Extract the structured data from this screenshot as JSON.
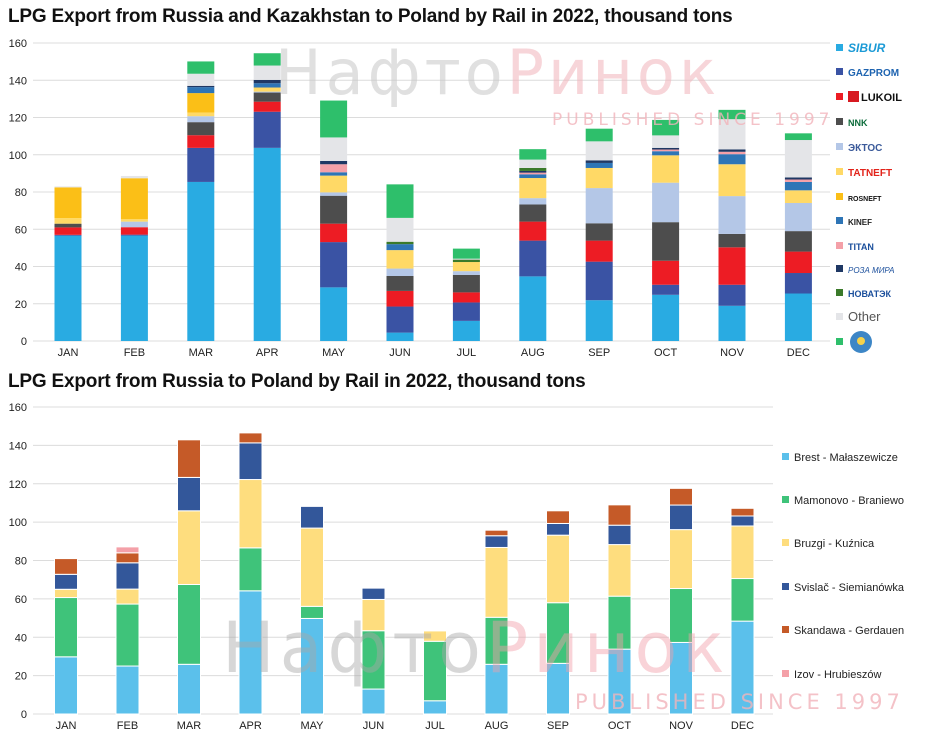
{
  "chart_data": [
    {
      "type": "bar",
      "stacked": true,
      "title": "LPG Export  from Russia and Kazakhstan to Poland by Rail in 2022, thousand tons",
      "categories": [
        "JAN",
        "FEB",
        "MAR",
        "APR",
        "MAY",
        "JUN",
        "JUL",
        "AUG",
        "SEP",
        "OCT",
        "NOV",
        "DEC"
      ],
      "ylim": [
        0,
        160
      ],
      "yticks": [
        0,
        20,
        40,
        60,
        80,
        100,
        120,
        140,
        160
      ],
      "grid": true,
      "legend_placement": "right",
      "series": [
        {
          "name": "SIBUR",
          "color": "#29abe2",
          "values": [
            56.5,
            56.6,
            85.4,
            103.7,
            28.8,
            4.5,
            10.8,
            34.7,
            21.9,
            24.8,
            18.9,
            25.5
          ]
        },
        {
          "name": "GAZPROM",
          "color": "#3a53a4",
          "values": [
            0.5,
            0.5,
            18.3,
            19.4,
            24.3,
            14,
            9.9,
            19.2,
            20.7,
            5.4,
            11.3,
            11
          ]
        },
        {
          "name": "LUKOIL",
          "color": "#ed1c24",
          "values": [
            4,
            4,
            6.8,
            5.4,
            9.9,
            8.4,
            5.4,
            10.2,
            11.3,
            12.9,
            20.1,
            11.5
          ]
        },
        {
          "name": "NNK",
          "color": "#4d4d4d",
          "values": [
            2,
            0,
            7,
            4.9,
            15,
            8,
            9.4,
            9.2,
            9.3,
            20.7,
            7.2,
            11
          ]
        },
        {
          "name": "EKTOS",
          "color": "#b4c7e7",
          "values": [
            0,
            3,
            3.2,
            0.5,
            1.8,
            4,
            2,
            3.4,
            18.9,
            21.2,
            20.3,
            15.1
          ]
        },
        {
          "name": "TATNEFT",
          "color": "#ffd966",
          "values": [
            3,
            1.3,
            2,
            2.2,
            9,
            9.9,
            4.9,
            10.8,
            10.8,
            14.7,
            17.1,
            6.8
          ]
        },
        {
          "name": "ROSNEFT",
          "color": "#fbbf17",
          "values": [
            16.5,
            22,
            10.4,
            0,
            0,
            0,
            0,
            0,
            0,
            0,
            0,
            0
          ]
        },
        {
          "name": "KINEF",
          "color": "#2e75b6",
          "values": [
            0,
            0,
            3.2,
            2.3,
            1.8,
            3.2,
            0,
            2,
            2.7,
            2.2,
            5.4,
            4.5
          ]
        },
        {
          "name": "TITAN",
          "color": "#f4a0a8",
          "values": [
            0,
            0,
            0,
            0,
            4.3,
            0,
            0,
            0.9,
            0,
            0.9,
            1.3,
            1.3
          ]
        },
        {
          "name": "ROZA MIRA",
          "color": "#1f3864",
          "values": [
            0,
            0,
            0.7,
            1.8,
            1.8,
            0,
            0,
            0.9,
            1.4,
            0.9,
            1.3,
            1.1
          ]
        },
        {
          "name": "NOVATEK",
          "color": "#3b7a2a",
          "values": [
            0,
            0,
            0,
            0,
            0,
            1.3,
            1.3,
            1.6,
            0,
            0,
            0,
            0
          ]
        },
        {
          "name": "Other",
          "color": "#e4e5e8",
          "values": [
            0.5,
            1.2,
            6.5,
            7.7,
            12.6,
            12.8,
            0.5,
            4.5,
            10.2,
            6.7,
            16.2,
            20.1
          ]
        },
        {
          "name": "Kazakhstan",
          "color": "#2ebf6b",
          "values": [
            0,
            0,
            6.6,
            6.6,
            19.8,
            18,
            5.4,
            5.6,
            6.8,
            8.3,
            5,
            3.6
          ]
        }
      ]
    },
    {
      "type": "bar",
      "stacked": true,
      "title": "LPG Export  from Russia to Poland by Rail in 2022, thousand tons",
      "categories": [
        "JAN",
        "FEB",
        "MAR",
        "APR",
        "MAY",
        "JUN",
        "JUL",
        "AUG",
        "SEP",
        "OCT",
        "NOV",
        "DEC"
      ],
      "ylim": [
        0,
        160
      ],
      "yticks": [
        0,
        20,
        40,
        60,
        80,
        100,
        120,
        140,
        160
      ],
      "grid": true,
      "legend_placement": "right",
      "series": [
        {
          "name": "Brest - Małaszewicze",
          "color": "#5bc0eb",
          "values": [
            29.8,
            25,
            25.9,
            64.2,
            49.8,
            13,
            6.9,
            25.9,
            26.4,
            33.8,
            37.3,
            48.4
          ]
        },
        {
          "name": "Mamonovo - Braniewo",
          "color": "#3fc37a",
          "values": [
            30.9,
            32.3,
            41.6,
            22.4,
            6.3,
            30.4,
            31,
            24.5,
            31.6,
            27.6,
            28.1,
            22.2
          ]
        },
        {
          "name": "Bruzgi - Kuźnica",
          "color": "#fedd7e",
          "values": [
            4.3,
            7.8,
            38.4,
            35.6,
            40.8,
            16.3,
            5.4,
            36.4,
            35.2,
            26.9,
            30.7,
            27.4
          ]
        },
        {
          "name": "Svislač - Siemianówka",
          "color": "#33579a",
          "values": [
            7.8,
            13.7,
            17.4,
            19.1,
            11.3,
            5.9,
            0,
            6.1,
            6.1,
            10.1,
            12.8,
            5.2
          ]
        },
        {
          "name": "Skandawa - Gerdauen",
          "color": "#c55a28",
          "values": [
            8.2,
            5.2,
            19.6,
            5.2,
            0,
            0,
            0,
            2.9,
            6.6,
            10.6,
            8.7,
            4
          ]
        },
        {
          "name": "Izov - Hrubieszów",
          "color": "#f4a0a8",
          "values": [
            0,
            3.1,
            0,
            0,
            0,
            0,
            0,
            0,
            0,
            0,
            0,
            0
          ]
        }
      ]
    }
  ],
  "watermark": {
    "brand_grey": "Нафто",
    "brand_red": "Ринок",
    "tagline": "PUBLISHED SINCE 1997"
  }
}
